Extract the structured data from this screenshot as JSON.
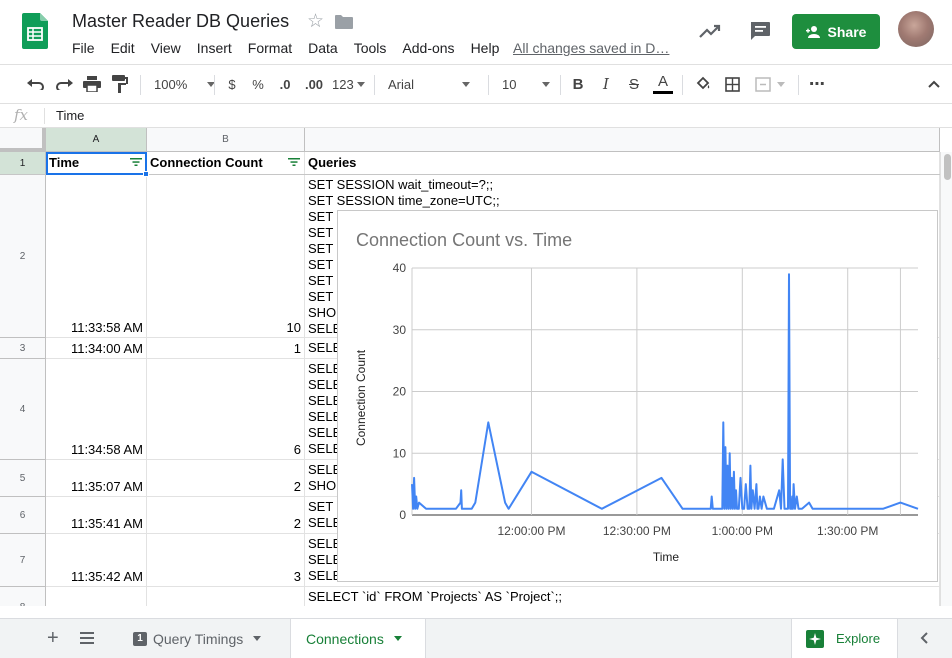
{
  "doc": {
    "title": "Master Reader DB Queries",
    "save_status": "All changes saved in D…"
  },
  "menu": [
    "File",
    "Edit",
    "View",
    "Insert",
    "Format",
    "Data",
    "Tools",
    "Add-ons",
    "Help"
  ],
  "share": {
    "label": "Share"
  },
  "toolbar": {
    "zoom": "100%",
    "currency": "$",
    "percent": "%",
    "dec_decrease": ".0",
    "dec_increase": ".00",
    "more_formats": "123",
    "font": "Arial",
    "font_size": "10",
    "bold": "B",
    "italic": "I",
    "strike": "S",
    "text_color": "A",
    "more": "⋯"
  },
  "formula": {
    "fx": "fx",
    "value": "Time"
  },
  "columns": [
    "A",
    "B",
    ""
  ],
  "headers": {
    "time": "Time",
    "count": "Connection Count",
    "queries": "Queries"
  },
  "rows": [
    {
      "num": "1"
    },
    {
      "num": "2",
      "time": "11:33:58 AM",
      "count": "10",
      "queries": [
        "SET SESSION wait_timeout=?;;",
        "SET SESSION time_zone=UTC;;",
        "SET",
        "SET",
        "SET",
        "SET",
        "SET",
        "SET",
        "SHO",
        "SELE"
      ]
    },
    {
      "num": "3",
      "time": "11:34:00 AM",
      "count": "1",
      "queries": [
        "SELE"
      ]
    },
    {
      "num": "4",
      "time": "11:34:58 AM",
      "count": "6",
      "queries": [
        "SELE",
        "SELE",
        "SELE",
        "SELE",
        "SELE",
        "SELE"
      ]
    },
    {
      "num": "5",
      "time": "11:35:07 AM",
      "count": "2",
      "queries": [
        "SELE",
        "SHO"
      ]
    },
    {
      "num": "6",
      "time": "11:35:41 AM",
      "count": "2",
      "queries": [
        "SET",
        "SELE"
      ]
    },
    {
      "num": "7",
      "time": "11:35:42 AM",
      "count": "3",
      "queries": [
        "SELE",
        "SELE",
        "SELE"
      ]
    },
    {
      "num": "8",
      "time": "",
      "count": "",
      "queries": [
        "SELECT `id` FROM `Projects` AS `Project`;;"
      ]
    }
  ],
  "tabs": [
    {
      "badge": "1",
      "label": "Query Timings",
      "active": false
    },
    {
      "label": "Connections",
      "active": true
    }
  ],
  "explore": {
    "label": "Explore"
  },
  "colors": {
    "accent": "#1a73e8",
    "green": "#188038",
    "share_bg": "#1e8e3e",
    "series": "#4285f4"
  },
  "chart_data": {
    "type": "line",
    "title": "Connection Count vs. Time",
    "xlabel": "Time",
    "ylabel": "Connection Count",
    "ylim": [
      0,
      40
    ],
    "yticks": [
      "0",
      "10",
      "20",
      "30",
      "40"
    ],
    "xticks": [
      "12:00:00 PM",
      "12:30:00 PM",
      "1:00:00 PM",
      "1:30:00 PM"
    ],
    "x_minutes_after_noon": [
      -34,
      -33.7,
      -33.4,
      -33.1,
      -32.8,
      -32.5,
      -32,
      -30,
      -25,
      -22.5,
      -21.5,
      -20.2,
      -20,
      -19.8,
      -17,
      -16,
      -12.3,
      -7.5,
      -6.5,
      0,
      20,
      37,
      43,
      51,
      51.3,
      51.6,
      51.9,
      52.2,
      52.5,
      52.8,
      53.1,
      53.4,
      53.7,
      54,
      54.3,
      54.6,
      54.9,
      55.2,
      55.5,
      55.8,
      56.1,
      56.4,
      56.7,
      57,
      57.3,
      57.6,
      57.9,
      58.2,
      58.5,
      59,
      59.5,
      60,
      60.5,
      61,
      61.5,
      62,
      62.3,
      62.6,
      63,
      63.5,
      64,
      64.3,
      64.6,
      65,
      65.5,
      66,
      67,
      68,
      68.5,
      69,
      70.5,
      71,
      71.5,
      72,
      72.5,
      73,
      73.3,
      73.6,
      74,
      74.2,
      74.4,
      74.6,
      75,
      75.5,
      76,
      77,
      79,
      80,
      82,
      86,
      88,
      95,
      100,
      105,
      110
    ],
    "y": [
      5,
      1,
      6,
      1,
      3,
      1,
      2,
      1,
      1,
      1,
      1,
      2,
      4,
      1,
      1,
      2,
      15,
      2,
      1,
      7,
      1,
      6,
      1,
      1,
      3,
      1,
      1,
      1,
      1,
      1,
      1,
      1,
      1,
      1,
      1,
      15,
      1,
      11,
      1,
      8,
      1,
      10,
      1,
      6,
      1,
      7,
      1,
      4,
      1,
      1,
      6,
      1,
      1,
      5,
      1,
      1,
      8,
      1,
      4,
      1,
      5,
      1,
      1,
      3,
      1,
      3,
      1,
      1,
      1,
      1,
      4,
      1,
      9,
      1,
      1,
      1,
      39,
      1,
      1,
      3,
      1,
      5,
      1,
      3,
      1,
      1,
      2,
      1,
      1,
      1,
      1,
      1,
      1,
      2,
      1
    ]
  }
}
